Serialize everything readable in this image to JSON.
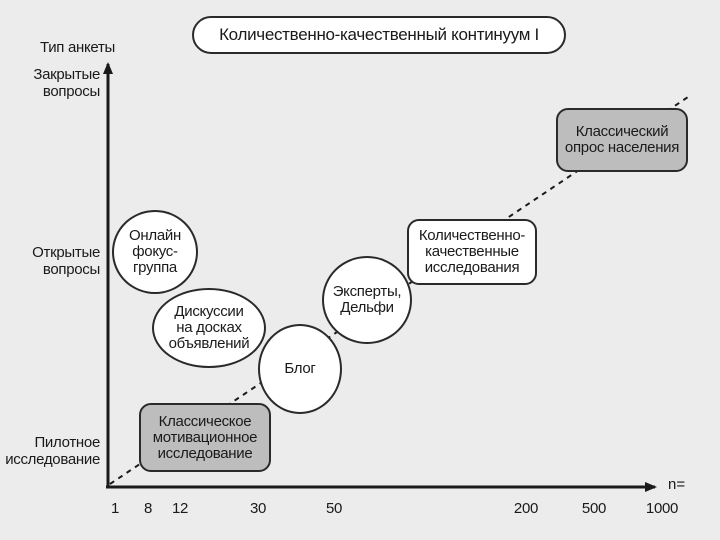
{
  "title": "Количественно-качественный континуум I",
  "y_axis": {
    "title": "Тип анкеты",
    "levels": [
      "Закрытые\nвопросы",
      "Открытые\nвопросы",
      "Пилотное\nисследование"
    ]
  },
  "x_axis": {
    "label": "n=",
    "ticks": [
      "1",
      "8",
      "12",
      "30",
      "50",
      "200",
      "500",
      "1000"
    ]
  },
  "nodes": {
    "online_focus_group": "Онлайн\nфокус-\nгруппа",
    "board_discussions": "Дискуссии\nна досках\nобъявлений",
    "blog": "Блог",
    "experts_delphi": "Эксперты,\nДельфи",
    "quant_qual_research": "Количественно-\nкачественные\nисследования",
    "classic_population_survey": "Классический\nопрос населения",
    "classic_motivational_research": "Классическое\nмотивационное\nисследование"
  }
}
